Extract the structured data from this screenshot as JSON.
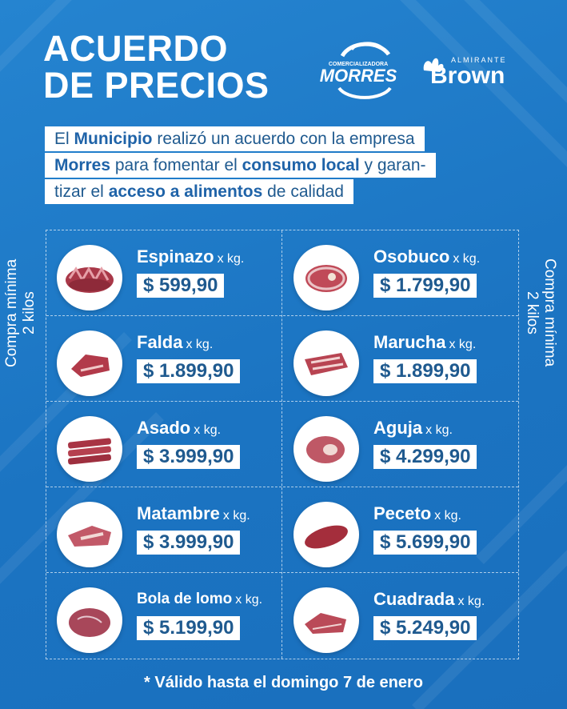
{
  "header": {
    "title_line1": "ACUERDO",
    "title_line2": "DE PRECIOS"
  },
  "logos": {
    "morres_small": "COMERCIALIZADORA",
    "morres_name": "MORRES",
    "brown_small": "ALMIRANTE",
    "brown_name": "Brown"
  },
  "intro": {
    "l1_a": "El ",
    "l1_b": "Municipio",
    "l1_c": " realizó un acuerdo con la empresa",
    "l2_a": "Morres",
    "l2_b": " para fomentar el ",
    "l2_c": "consumo local",
    "l2_d": " y garan-",
    "l3_a": "tizar el ",
    "l3_b": "acceso a alimentos",
    "l3_c": " de calidad"
  },
  "side_note": {
    "line1": "Compra mínima",
    "line2": "2 kilos"
  },
  "unit_label": "x kg.",
  "products": [
    {
      "name": "Espinazo",
      "price": "$ 599,90",
      "image": "espinazo-image"
    },
    {
      "name": "Osobuco",
      "price": "$ 1.799,90",
      "image": "osobuco-image"
    },
    {
      "name": "Falda",
      "price": "$ 1.899,90",
      "image": "falda-image"
    },
    {
      "name": "Marucha",
      "price": "$ 1.899,90",
      "image": "marucha-image"
    },
    {
      "name": "Asado",
      "price": "$ 3.999,90",
      "image": "asado-image"
    },
    {
      "name": "Aguja",
      "price": "$ 4.299,90",
      "image": "aguja-image"
    },
    {
      "name": "Matambre",
      "price": "$ 3.999,90",
      "image": "matambre-image"
    },
    {
      "name": "Peceto",
      "price": "$ 5.699,90",
      "image": "peceto-image"
    },
    {
      "name": "Bola de lomo",
      "price": "$ 5.199,90",
      "image": "bola-de-lomo-image"
    },
    {
      "name": "Cuadrada",
      "price": "$ 5.249,90",
      "image": "cuadrada-image"
    }
  ],
  "footer": "* Válido hasta el domingo 7 de enero",
  "colors": {
    "background": "#1f7bc9",
    "text_dark": "#1f5a8f",
    "white": "#ffffff",
    "meat": "#b5414f"
  }
}
